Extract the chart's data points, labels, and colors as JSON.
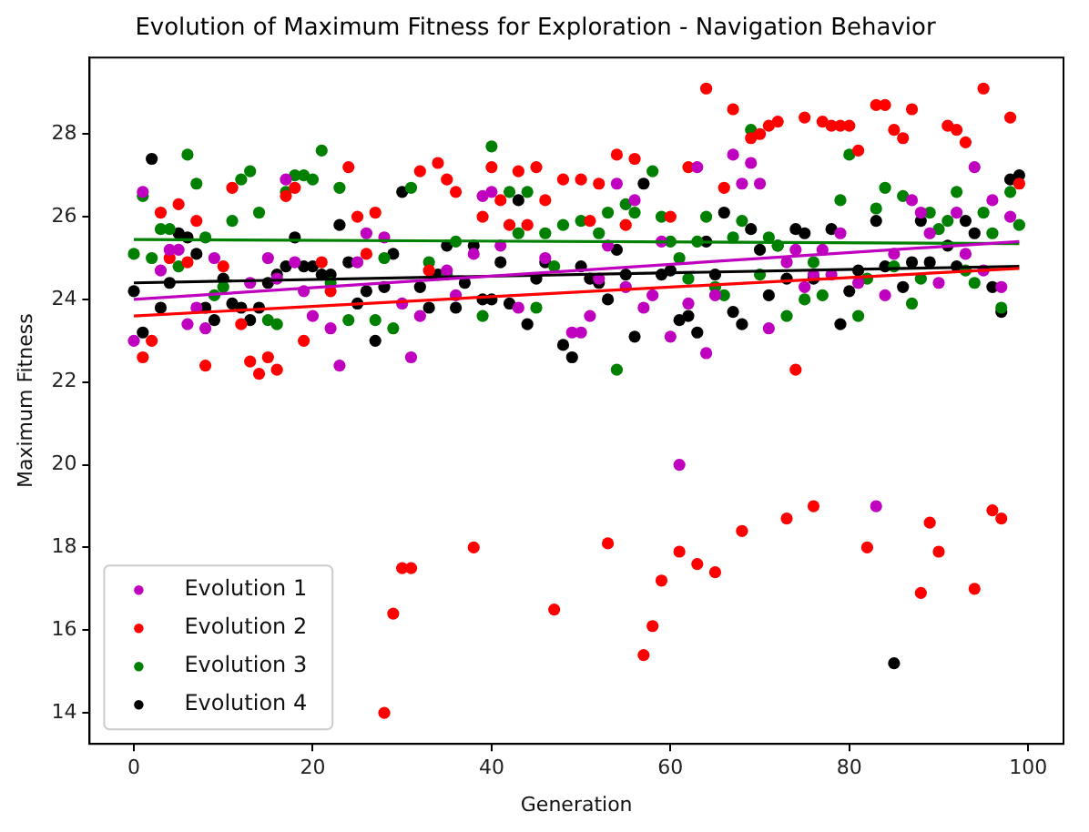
{
  "chart_data": {
    "type": "scatter",
    "title": "Evolution of Maximum Fitness for Exploration - Navigation Behavior",
    "xlabel": "Generation",
    "ylabel": "Maximum Fitness",
    "xlim": [
      -4.95,
      103.95
    ],
    "ylim": [
      13.25,
      29.85
    ],
    "xticks": [
      0,
      20,
      40,
      60,
      80,
      100
    ],
    "yticks": [
      14,
      16,
      18,
      20,
      22,
      24,
      26,
      28
    ],
    "grid": false,
    "legend": "bottom left",
    "marker": "circle",
    "series": [
      {
        "name": "Evolution 1",
        "color": "#bf00bf",
        "x": [
          0,
          1,
          3,
          4,
          5,
          6,
          7,
          8,
          9,
          13,
          15,
          16,
          17,
          18,
          19,
          20,
          22,
          23,
          25,
          26,
          28,
          30,
          31,
          32,
          35,
          36,
          38,
          39,
          40,
          41,
          43,
          46,
          49,
          50,
          51,
          52,
          53,
          54,
          55,
          56,
          57,
          58,
          59,
          60,
          61,
          62,
          63,
          64,
          65,
          67,
          68,
          69,
          70,
          71,
          73,
          74,
          75,
          76,
          77,
          78,
          79,
          81,
          83,
          84,
          85,
          87,
          88,
          89,
          90,
          92,
          93,
          94,
          95,
          96,
          97,
          98
        ],
        "values": [
          23.0,
          26.6,
          24.7,
          25.2,
          25.2,
          23.4,
          23.8,
          23.3,
          25.0,
          24.4,
          25.0,
          24.5,
          26.9,
          24.9,
          24.2,
          23.6,
          23.3,
          22.4,
          24.9,
          25.6,
          25.5,
          23.9,
          22.6,
          23.6,
          24.7,
          24.1,
          25.1,
          26.5,
          26.6,
          25.3,
          23.8,
          25.0,
          23.2,
          23.2,
          23.6,
          24.5,
          25.3,
          26.8,
          24.3,
          26.4,
          23.8,
          24.1,
          25.4,
          23.1,
          20.0,
          23.9,
          27.2,
          22.7,
          24.1,
          27.5,
          26.8,
          27.3,
          26.8,
          23.3,
          24.9,
          25.2,
          24.3,
          24.6,
          25.2,
          24.6,
          25.6,
          24.4,
          19.0,
          24.1,
          25.1,
          26.4,
          26.1,
          25.6,
          24.4,
          26.1,
          25.1,
          27.2,
          24.7,
          26.4,
          24.3,
          26.0
        ]
      },
      {
        "name": "Evolution 2",
        "color": "#ff0000",
        "x": [
          1,
          2,
          3,
          4,
          5,
          6,
          7,
          8,
          10,
          11,
          12,
          13,
          14,
          15,
          16,
          17,
          18,
          19,
          21,
          22,
          24,
          25,
          26,
          27,
          28,
          29,
          30,
          31,
          32,
          33,
          34,
          35,
          36,
          38,
          39,
          40,
          41,
          42,
          43,
          44,
          45,
          46,
          47,
          48,
          50,
          51,
          52,
          53,
          54,
          55,
          56,
          57,
          58,
          59,
          60,
          61,
          62,
          63,
          64,
          65,
          66,
          67,
          68,
          69,
          70,
          71,
          72,
          73,
          74,
          75,
          76,
          77,
          78,
          79,
          80,
          81,
          82,
          83,
          84,
          85,
          86,
          87,
          88,
          89,
          90,
          91,
          92,
          93,
          94,
          95,
          96,
          97,
          98,
          99
        ],
        "values": [
          22.6,
          23.0,
          26.1,
          25.0,
          26.3,
          24.9,
          25.9,
          22.4,
          24.8,
          26.7,
          23.4,
          22.5,
          22.2,
          22.6,
          22.3,
          26.5,
          26.7,
          23.0,
          24.9,
          24.2,
          27.2,
          26.0,
          25.1,
          26.1,
          14.0,
          16.4,
          17.5,
          17.5,
          27.1,
          24.7,
          27.3,
          26.9,
          26.6,
          18.0,
          26.0,
          27.2,
          26.4,
          25.8,
          27.1,
          25.8,
          27.2,
          26.4,
          16.5,
          26.9,
          26.9,
          25.9,
          26.8,
          18.1,
          27.5,
          25.8,
          27.4,
          15.4,
          16.1,
          17.2,
          26.0,
          17.9,
          27.2,
          17.6,
          29.1,
          17.4,
          26.7,
          28.6,
          18.4,
          27.9,
          28.0,
          28.2,
          28.3,
          18.7,
          22.3,
          28.4,
          19.0,
          28.3,
          28.2,
          28.2,
          28.2,
          27.6,
          18.0,
          28.7,
          28.7,
          28.1,
          27.9,
          28.6,
          16.9,
          18.6,
          17.9,
          28.2,
          28.1,
          27.8,
          17.0,
          29.1,
          18.9,
          18.7,
          28.4,
          26.8
        ]
      },
      {
        "name": "Evolution 3",
        "color": "#008000",
        "x": [
          0,
          1,
          2,
          3,
          4,
          5,
          6,
          7,
          8,
          9,
          10,
          11,
          12,
          13,
          14,
          15,
          16,
          17,
          18,
          19,
          20,
          21,
          22,
          23,
          24,
          27,
          28,
          29,
          31,
          33,
          35,
          36,
          39,
          40,
          42,
          43,
          44,
          45,
          46,
          47,
          48,
          50,
          52,
          53,
          54,
          55,
          56,
          58,
          59,
          60,
          61,
          62,
          63,
          64,
          65,
          66,
          67,
          68,
          69,
          70,
          71,
          72,
          73,
          75,
          76,
          77,
          79,
          80,
          81,
          82,
          83,
          84,
          85,
          86,
          87,
          88,
          89,
          90,
          91,
          92,
          93,
          94,
          95,
          96,
          97,
          98,
          99
        ],
        "values": [
          25.1,
          26.5,
          25.0,
          25.7,
          25.7,
          24.8,
          27.5,
          26.8,
          25.5,
          24.1,
          24.3,
          25.9,
          26.9,
          27.1,
          26.1,
          23.5,
          23.4,
          26.6,
          27.0,
          27.0,
          26.9,
          27.6,
          24.4,
          26.7,
          23.5,
          23.5,
          25.0,
          23.3,
          26.7,
          24.9,
          24.6,
          25.4,
          23.6,
          27.7,
          26.6,
          25.6,
          26.6,
          23.8,
          25.6,
          24.8,
          25.8,
          25.9,
          25.6,
          26.1,
          22.3,
          26.3,
          26.1,
          27.1,
          26.0,
          25.4,
          25.0,
          24.5,
          25.4,
          26.0,
          24.3,
          24.1,
          25.5,
          25.9,
          28.1,
          24.6,
          25.5,
          25.3,
          23.6,
          24.0,
          24.9,
          24.1,
          26.4,
          27.5,
          23.6,
          24.5,
          26.2,
          26.7,
          24.8,
          26.5,
          23.9,
          24.5,
          26.1,
          25.7,
          25.9,
          26.6,
          24.7,
          24.4,
          26.1,
          25.6,
          23.8,
          26.6,
          25.8
        ]
      },
      {
        "name": "Evolution 4",
        "color": "#000000",
        "x": [
          0,
          1,
          2,
          3,
          4,
          5,
          6,
          7,
          8,
          9,
          10,
          11,
          12,
          13,
          14,
          15,
          16,
          17,
          18,
          19,
          20,
          21,
          22,
          23,
          24,
          25,
          26,
          27,
          28,
          29,
          30,
          32,
          33,
          34,
          35,
          36,
          37,
          38,
          39,
          40,
          41,
          42,
          43,
          44,
          45,
          46,
          48,
          49,
          50,
          51,
          52,
          53,
          54,
          55,
          56,
          57,
          59,
          60,
          61,
          62,
          63,
          64,
          65,
          66,
          67,
          68,
          69,
          70,
          71,
          72,
          73,
          74,
          75,
          76,
          78,
          79,
          80,
          81,
          83,
          84,
          85,
          86,
          87,
          88,
          89,
          91,
          92,
          93,
          94,
          96,
          97,
          98,
          99
        ],
        "values": [
          24.2,
          23.2,
          27.4,
          23.8,
          24.4,
          25.6,
          25.5,
          25.1,
          23.8,
          23.5,
          24.5,
          23.9,
          23.8,
          23.5,
          23.8,
          24.4,
          24.6,
          24.8,
          25.5,
          24.8,
          24.8,
          24.6,
          24.6,
          25.8,
          24.9,
          23.9,
          24.2,
          23.0,
          24.3,
          25.1,
          26.6,
          24.3,
          23.8,
          24.6,
          25.3,
          23.8,
          24.4,
          25.3,
          24.0,
          24.0,
          24.9,
          23.9,
          26.4,
          23.4,
          24.5,
          24.9,
          22.9,
          22.6,
          24.8,
          24.5,
          24.4,
          24.0,
          25.2,
          24.6,
          23.1,
          26.8,
          24.6,
          24.7,
          23.5,
          23.6,
          23.2,
          25.4,
          24.6,
          26.1,
          23.7,
          23.4,
          25.7,
          25.2,
          24.1,
          25.3,
          24.5,
          25.7,
          25.6,
          24.5,
          25.7,
          23.4,
          24.2,
          24.7,
          25.9,
          24.8,
          15.2,
          24.3,
          24.9,
          25.9,
          24.9,
          25.3,
          24.8,
          25.9,
          25.6,
          24.3,
          23.7,
          26.9,
          27.0
        ]
      },
      {
        "type": "line",
        "marker": "none",
        "color": "#bf00bf",
        "x": [
          0,
          99
        ],
        "values": [
          24.0,
          25.4
        ]
      },
      {
        "type": "line",
        "marker": "none",
        "color": "#ff0000",
        "x": [
          0,
          99
        ],
        "values": [
          23.6,
          24.75
        ]
      },
      {
        "type": "line",
        "marker": "none",
        "color": "#008000",
        "x": [
          0,
          99
        ],
        "values": [
          25.45,
          25.35
        ]
      },
      {
        "type": "line",
        "marker": "none",
        "color": "#000000",
        "x": [
          0,
          99
        ],
        "values": [
          24.4,
          24.8
        ]
      }
    ]
  }
}
